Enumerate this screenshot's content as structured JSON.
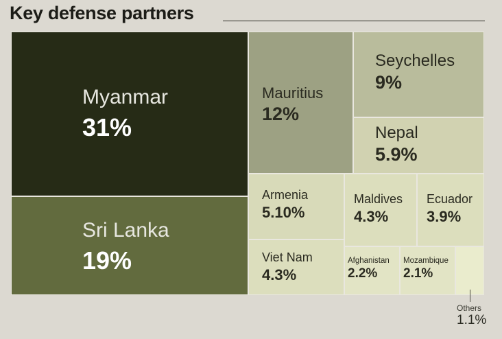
{
  "title": "Key defense partners",
  "chart_data": {
    "type": "treemap",
    "title": "Key defense partners",
    "cells": [
      {
        "name": "Myanmar",
        "label": "31%",
        "value": 31,
        "color": "#262b16"
      },
      {
        "name": "Sri Lanka",
        "label": "19%",
        "value": 19,
        "color": "#626b3e"
      },
      {
        "name": "Mauritius",
        "label": "12%",
        "value": 12,
        "color": "#9da183"
      },
      {
        "name": "Seychelles",
        "label": "9%",
        "value": 9,
        "color": "#b9bc9c"
      },
      {
        "name": "Nepal",
        "label": "5.9%",
        "value": 5.9,
        "color": "#d1d2b1"
      },
      {
        "name": "Armenia",
        "label": "5.10%",
        "value": 5.1,
        "color": "#d8dab9"
      },
      {
        "name": "Viet Nam",
        "label": "4.3%",
        "value": 4.3,
        "color": "#dcdebd"
      },
      {
        "name": "Maldives",
        "label": "4.3%",
        "value": 4.3,
        "color": "#dcdebd"
      },
      {
        "name": "Ecuador",
        "label": "3.9%",
        "value": 3.9,
        "color": "#dcdebd"
      },
      {
        "name": "Afghanistan",
        "label": "2.2%",
        "value": 2.2,
        "color": "#e2e4c5"
      },
      {
        "name": "Mozambique",
        "label": "2.1%",
        "value": 2.1,
        "color": "#e2e4c5"
      },
      {
        "name": "Others",
        "label": "1.1%",
        "value": 1.1,
        "color": "#eaeccd"
      }
    ]
  }
}
